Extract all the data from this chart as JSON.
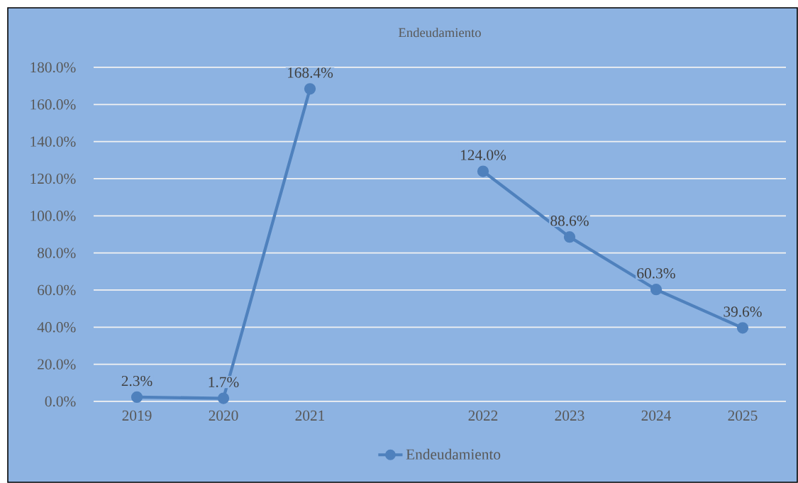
{
  "chart_data": {
    "type": "line",
    "title": "Endeudamiento",
    "categories": [
      "2019",
      "2020",
      "2021",
      null,
      "2022",
      "2023",
      "2024",
      "2025"
    ],
    "series": [
      {
        "name": "Endeudamiento",
        "color": "#4f81bd",
        "values": [
          2.3,
          1.7,
          168.4,
          null,
          124.0,
          88.6,
          60.3,
          39.6
        ],
        "value_labels": [
          "2.3%",
          "1.7%",
          "168.4%",
          null,
          "124.0%",
          "88.6%",
          "60.3%",
          "39.6%"
        ]
      }
    ],
    "ylim": [
      0,
      180
    ],
    "yticks": [
      {
        "value": 0,
        "label": "0.0%"
      },
      {
        "value": 20,
        "label": "20.0%"
      },
      {
        "value": 40,
        "label": "40.0%"
      },
      {
        "value": 60,
        "label": "60.0%"
      },
      {
        "value": 80,
        "label": "80.0%"
      },
      {
        "value": 100,
        "label": "100.0%"
      },
      {
        "value": 120,
        "label": "120.0%"
      },
      {
        "value": 140,
        "label": "140.0%"
      },
      {
        "value": 160,
        "label": "160.0%"
      },
      {
        "value": 180,
        "label": "180.0%"
      }
    ],
    "grid": "y",
    "legend": "bottom",
    "marker": "circle",
    "line_style": "solid"
  }
}
